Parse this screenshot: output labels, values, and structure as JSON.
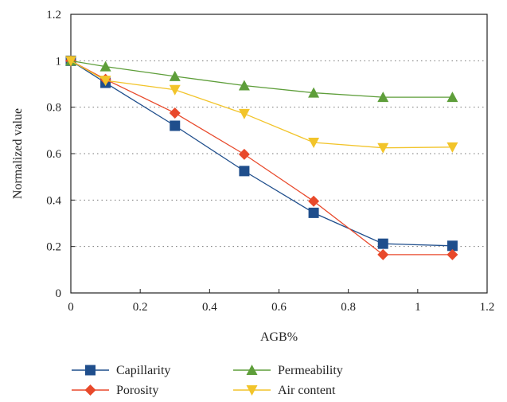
{
  "chart_data": {
    "type": "line",
    "xlabel": "AGB%",
    "ylabel": "Normalized value",
    "xlim": [
      0,
      1.2
    ],
    "ylim": [
      0,
      1.2
    ],
    "xticks": [
      0,
      0.2,
      0.4,
      0.6,
      0.8,
      1,
      1.2
    ],
    "xtick_labels": [
      "0",
      "0.2",
      "0.4",
      "0.6",
      "0.8",
      "1",
      "1.2"
    ],
    "yticks": [
      0,
      0.2,
      0.4,
      0.6,
      0.8,
      1,
      1.2
    ],
    "ytick_labels": [
      "0",
      "0.2",
      "0.4",
      "0.6",
      "0.8",
      "1",
      "1.2"
    ],
    "grid": "horizontal dotted",
    "legend_position": "bottom",
    "x": [
      0,
      0.1,
      0.3,
      0.5,
      0.7,
      0.9,
      1.1
    ],
    "series": [
      {
        "name": "Capillarity",
        "color": "#1f4e8c",
        "marker": "square",
        "values": [
          1.0,
          0.905,
          0.72,
          0.525,
          0.345,
          0.212,
          0.203
        ]
      },
      {
        "name": "Porosity",
        "color": "#e8492b",
        "marker": "diamond",
        "values": [
          1.0,
          0.92,
          0.775,
          0.597,
          0.395,
          0.165,
          0.165
        ]
      },
      {
        "name": "Permeability",
        "color": "#5e9e3a",
        "marker": "triangle-up",
        "values": [
          1.0,
          0.975,
          0.933,
          0.893,
          0.862,
          0.843,
          0.843
        ]
      },
      {
        "name": "Air content",
        "color": "#f2c42a",
        "marker": "triangle-down",
        "values": [
          1.0,
          0.915,
          0.875,
          0.772,
          0.648,
          0.625,
          0.628
        ]
      }
    ]
  }
}
